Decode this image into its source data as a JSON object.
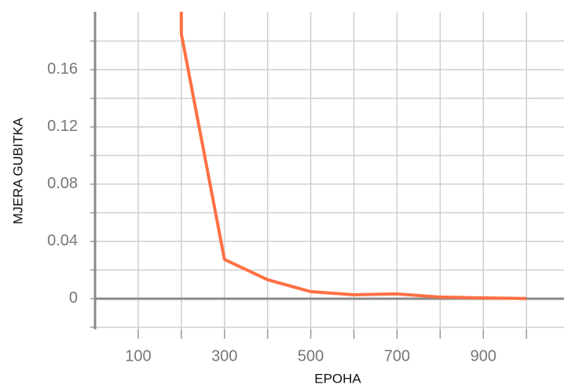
{
  "chart_data": {
    "type": "line",
    "xlabel": "EPOHA",
    "ylabel": "MJERA GUBITKA",
    "x": [
      200,
      200,
      300,
      400,
      500,
      600,
      700,
      800,
      900,
      1000
    ],
    "values": [
      0.21,
      0.185,
      0.0274,
      0.0132,
      0.0049,
      0.0027,
      0.0033,
      0.0011,
      0.0005,
      0.0001
    ],
    "color": "#ff7043",
    "xlim": [
      0,
      1087
    ],
    "ylim": [
      -0.0214,
      0.2005
    ],
    "xticks": [
      100,
      300,
      500,
      700,
      900
    ],
    "minor_xticks": [
      200,
      400,
      600,
      800,
      1000
    ],
    "yticks": [
      0,
      0.04,
      0.08,
      0.12,
      0.16
    ],
    "minor_yticks": [
      -0.02,
      0.02,
      0.06,
      0.1,
      0.14,
      0.18
    ],
    "grid": true
  }
}
